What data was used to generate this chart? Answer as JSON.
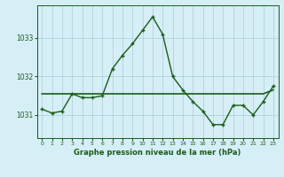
{
  "hours": [
    0,
    1,
    2,
    3,
    4,
    5,
    6,
    7,
    8,
    9,
    10,
    11,
    12,
    13,
    14,
    15,
    16,
    17,
    18,
    19,
    20,
    21,
    22,
    23
  ],
  "line1_values": [
    1031.15,
    1031.05,
    1031.1,
    1031.55,
    1031.45,
    1031.45,
    1031.5,
    1032.2,
    1032.55,
    1032.85,
    1033.2,
    1033.55,
    1033.1,
    1032.0,
    1031.65,
    1031.35,
    1031.1,
    1030.75,
    1030.75,
    1031.25,
    1031.25,
    1031.0,
    1031.35,
    1031.75
  ],
  "line2_values": [
    1031.55,
    1031.55,
    1031.55,
    1031.55,
    1031.55,
    1031.55,
    1031.55,
    1031.55,
    1031.55,
    1031.55,
    1031.55,
    1031.55,
    1031.55,
    1031.55,
    1031.55,
    1031.55,
    1031.55,
    1031.55,
    1031.55,
    1031.55,
    1031.55,
    1031.55,
    1031.55,
    1031.65
  ],
  "line1_color": "#1a5c1a",
  "line2_color": "#1a5c1a",
  "bg_color": "#d6eef5",
  "grid_color": "#aaccdd",
  "text_color": "#1a5c1a",
  "xlabel": "Graphe pression niveau de la mer (hPa)",
  "yticks": [
    1031,
    1032,
    1033
  ],
  "ylim": [
    1030.4,
    1033.85
  ],
  "xlim": [
    -0.5,
    23.5
  ],
  "figsize": [
    3.2,
    2.0
  ],
  "dpi": 100
}
